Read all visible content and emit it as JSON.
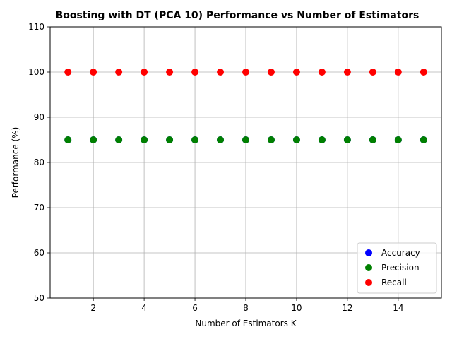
{
  "chart_data": {
    "type": "scatter",
    "title": "Boosting with DT (PCA 10) Performance vs Number of Estimators",
    "xlabel": "Number of Estimators K",
    "ylabel": "Performance (%)",
    "xlim": [
      0.3,
      15.7
    ],
    "ylim": [
      50,
      110
    ],
    "xticks": [
      2,
      4,
      6,
      8,
      10,
      12,
      14
    ],
    "yticks": [
      50,
      60,
      70,
      80,
      90,
      100,
      110
    ],
    "grid": true,
    "legend_position": "bottom-right",
    "x": [
      1,
      2,
      3,
      4,
      5,
      6,
      7,
      8,
      9,
      10,
      11,
      12,
      13,
      14,
      15
    ],
    "series": [
      {
        "name": "Accuracy",
        "color": "#0000ff",
        "values": [
          85,
          85,
          85,
          85,
          85,
          85,
          85,
          85,
          85,
          85,
          85,
          85,
          85,
          85,
          85
        ]
      },
      {
        "name": "Precision",
        "color": "#008000",
        "values": [
          85,
          85,
          85,
          85,
          85,
          85,
          85,
          85,
          85,
          85,
          85,
          85,
          85,
          85,
          85
        ]
      },
      {
        "name": "Recall",
        "color": "#ff0000",
        "values": [
          100,
          100,
          100,
          100,
          100,
          100,
          100,
          100,
          100,
          100,
          100,
          100,
          100,
          100,
          100
        ]
      }
    ]
  }
}
